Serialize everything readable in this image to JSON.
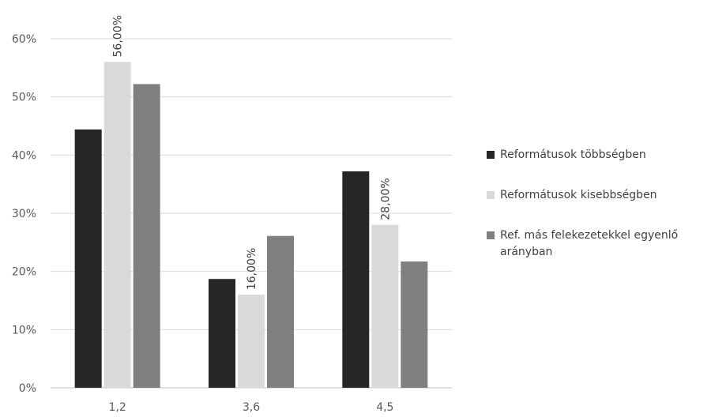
{
  "chart_data": {
    "type": "bar",
    "categories": [
      "1,2",
      "3,6",
      "4,5"
    ],
    "series": [
      {
        "name": "Reformátusok többségben",
        "color": "#262626",
        "values": [
          44.4,
          18.7,
          37.2
        ]
      },
      {
        "name": "Reformátusok kisebbségben",
        "color": "#d9d9d9",
        "values": [
          56.0,
          16.0,
          28.0
        ],
        "labels": [
          "56,00%",
          "16,00%",
          "28,00%"
        ]
      },
      {
        "name": "Ref. más felekezetekkel egyenlő arányban",
        "color": "#7f7f7f",
        "values": [
          52.2,
          26.1,
          21.7
        ]
      }
    ],
    "ylim": [
      0,
      60
    ],
    "yticks": [
      "0%",
      "10%",
      "20%",
      "30%",
      "40%",
      "50%",
      "60%"
    ],
    "grid": true,
    "legend_position": "right",
    "title": "",
    "xlabel": "",
    "ylabel": ""
  }
}
